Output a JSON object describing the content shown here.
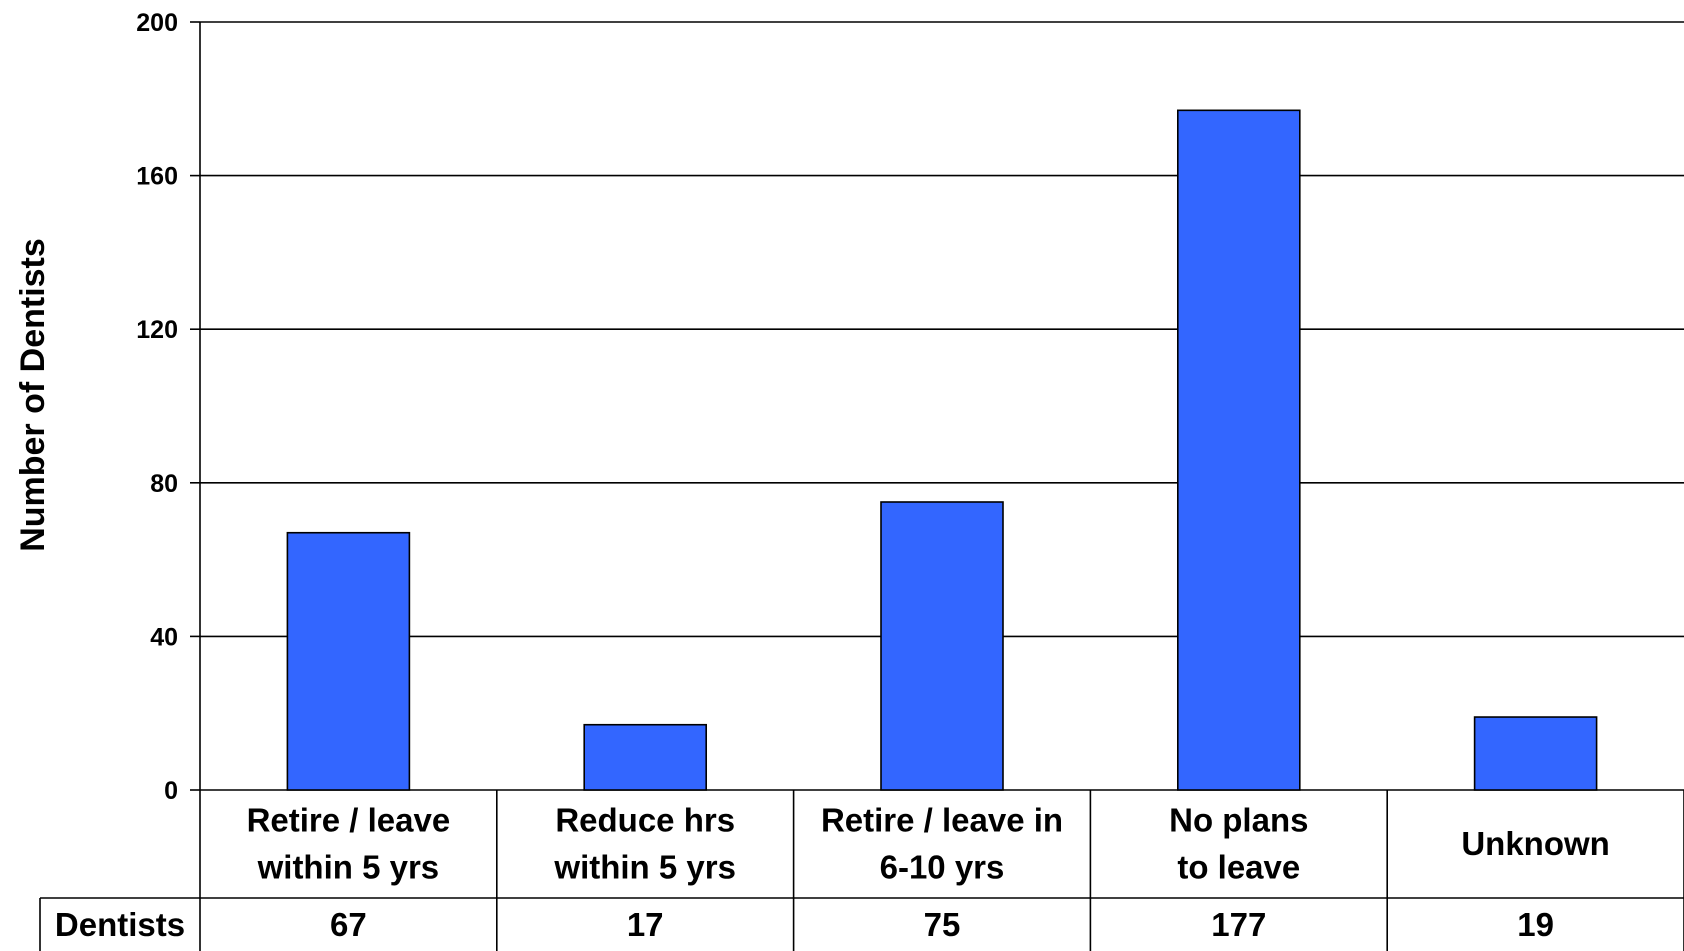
{
  "chart_data": {
    "type": "bar",
    "ylabel": "Number of Dentists",
    "ylim": [
      0,
      200
    ],
    "yticks": [
      0,
      40,
      80,
      120,
      160,
      200
    ],
    "grid": true,
    "categories": [
      [
        "Retire / leave",
        "within 5 yrs"
      ],
      [
        "Reduce hrs",
        "within 5 yrs"
      ],
      [
        "Retire / leave in",
        "6-10 yrs"
      ],
      [
        "No plans",
        "to leave"
      ],
      [
        "Unknown"
      ]
    ],
    "series": [
      {
        "name": "Dentists",
        "values": [
          67,
          17,
          75,
          177,
          19
        ]
      }
    ],
    "colors": {
      "bar": "#3366FF",
      "stroke": "#000000"
    }
  }
}
